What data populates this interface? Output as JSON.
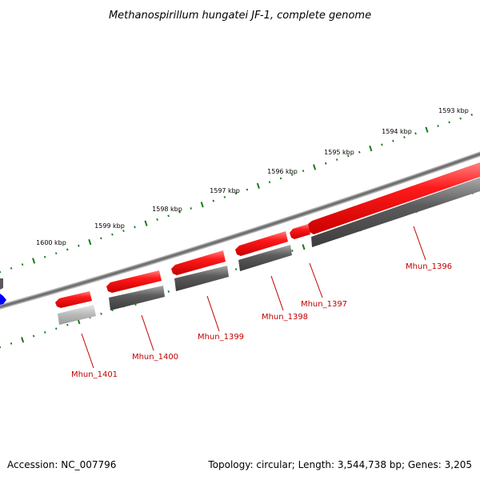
{
  "title": "Methanospirillum hungatei JF-1, complete genome",
  "footer": {
    "accession": "Accession: NC_007796",
    "topology": "Topology: circular; Length: 3,544,738 bp; Genes: 3,205"
  },
  "scale": {
    "unit": "kbp",
    "labels": [
      "1593 kbp",
      "1594 kbp",
      "1595 kbp",
      "1596 kbp",
      "1597 kbp",
      "1598 kbp",
      "1599 kbp",
      "1600 kbp"
    ]
  },
  "genes": [
    {
      "name": "Mhun_1396"
    },
    {
      "name": "Mhun_1397"
    },
    {
      "name": "Mhun_1398"
    },
    {
      "name": "Mhun_1399"
    },
    {
      "name": "Mhun_1400"
    },
    {
      "name": "Mhun_1401"
    }
  ],
  "colors": {
    "gene": "#ff0000",
    "gene_label": "#c00000",
    "tick": "#1a7a1a",
    "backbone": "#7a7a7a",
    "cds_dark": "#5a5a5a",
    "cds_light": "#b4b4b4",
    "marker": "#0000ff"
  }
}
